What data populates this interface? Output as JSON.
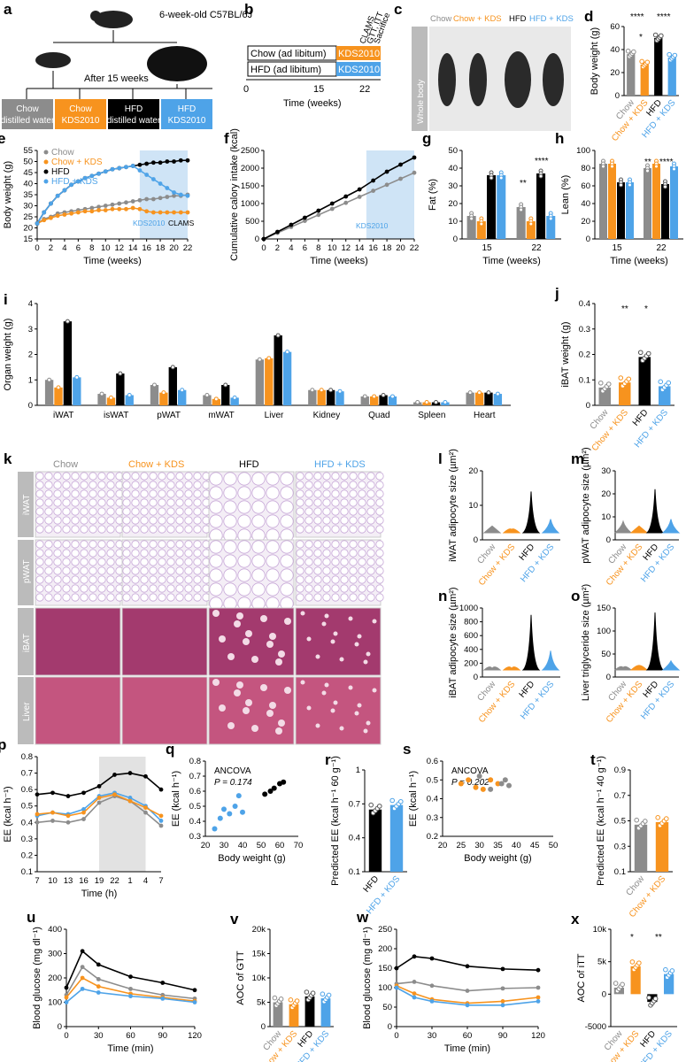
{
  "colors": {
    "chow": "#8c8c8c",
    "chowkds": "#f7931e",
    "hfd": "#000000",
    "hfdkds": "#4ea3e8",
    "shade": "#cfe4f6",
    "grey_shade": "#e2e2e2",
    "micro_pink": "#d8c8e4"
  },
  "groups": [
    "Chow",
    "Chow + KDS",
    "HFD",
    "HFD + KDS"
  ],
  "panels": {
    "a": {
      "label": "a",
      "mouse_label": "6-week-old C57BL/6J",
      "after": "After 15 weeks",
      "boxes": [
        "Chow distilled water",
        "Chow KDS2010",
        "HFD distilled water",
        "HFD KDS2010"
      ]
    },
    "b": {
      "label": "b",
      "chow_line": "Chow (ad libitum)",
      "hfd_line": "HFD (ad libitum)",
      "kds": "KDS2010",
      "events": [
        "CLAMS",
        "GTT, ITT",
        "Sacrifice"
      ],
      "ticks": [
        "0",
        "15",
        "22"
      ],
      "xlabel": "Time (weeks)"
    },
    "c": {
      "label": "c",
      "side": "Whole body",
      "groups": [
        "Chow",
        "Chow + KDS",
        "HFD",
        "HFD + KDS"
      ]
    },
    "d": {
      "label": "d",
      "ylabel": "Body weight (g)",
      "ticks": [
        "0",
        "20",
        "40",
        "60"
      ],
      "stars": [
        "*",
        "****",
        "****"
      ]
    },
    "e": {
      "label": "e",
      "ylabel": "Body weight (g)",
      "xlabel": "Time (weeks)",
      "kds": "KDS2010",
      "clams": "CLAMS"
    },
    "f": {
      "label": "f",
      "ylabel": "Cumulative calory intake (kcal)",
      "xlabel": "Time (weeks)",
      "kds": "KDS2010"
    },
    "g": {
      "label": "g",
      "ylabel": "Fat (%)",
      "xlabel": "Time (weeks)",
      "stars": [
        "**",
        "****"
      ]
    },
    "h": {
      "label": "h",
      "ylabel": "Lean (%)",
      "xlabel": "Time (weeks)",
      "stars": [
        "**",
        "****"
      ]
    },
    "i": {
      "label": "i",
      "ylabel": "Organ weight (g)",
      "organs": [
        "iWAT",
        "isWAT",
        "pWAT",
        "mWAT",
        "Liver",
        "Kidney",
        "Quad",
        "Spleen",
        "Heart"
      ]
    },
    "j": {
      "label": "j",
      "ylabel": "iBAT weight (g)",
      "stars": [
        "**",
        "*"
      ]
    },
    "k": {
      "label": "k",
      "rows": [
        "iWAT",
        "pWAT",
        "iBAT",
        "Liver"
      ]
    },
    "l": {
      "label": "l",
      "ylabel": "iWAT adipocyte size (µm²)"
    },
    "m": {
      "label": "m",
      "ylabel": "pWAT adipocyte size (µm²)"
    },
    "n": {
      "label": "n",
      "ylabel": "iBAT adipocyte size (µm²)"
    },
    "o": {
      "label": "o",
      "ylabel": "Liver triglyceride size (µm²)"
    },
    "p": {
      "label": "p",
      "ylabel": "EE (kcal h⁻¹)",
      "xlabel": "Time (h)"
    },
    "q": {
      "label": "q",
      "ancova": "ANCOVA",
      "pval": "P = 0.174",
      "ylabel": "EE (kcal h⁻¹)",
      "xlabel": "Body weight (g)"
    },
    "r": {
      "label": "r",
      "ylabel": "Predicted EE (kcal h⁻¹ 60 g⁻¹)"
    },
    "s": {
      "label": "s",
      "ancova": "ANCOVA",
      "pval": "P = 0.202",
      "ylabel": "EE (kcal h⁻¹)",
      "xlabel": "Body weight (g)"
    },
    "t": {
      "label": "t",
      "ylabel": "Predicted EE (kcal h⁻¹ 40 g⁻¹)"
    },
    "u": {
      "label": "u",
      "ylabel": "Blood glucose (mg dl⁻¹)",
      "xlabel": "Time (min)"
    },
    "v": {
      "label": "v",
      "ylabel": "AOC of GTT"
    },
    "w": {
      "label": "w",
      "ylabel": "Blood glucose (mg dl⁻¹)",
      "xlabel": "Time (min)"
    },
    "x": {
      "label": "x",
      "ylabel": "AOC of iTT",
      "stars": [
        "*",
        "**"
      ]
    }
  },
  "chart_data": [
    {
      "panel": "d",
      "type": "bar",
      "categories": [
        "Chow",
        "Chow + KDS",
        "HFD",
        "HFD + KDS"
      ],
      "values": [
        36,
        27,
        50,
        33
      ],
      "ylim": [
        0,
        60
      ],
      "ylabel": "Body weight (g)"
    },
    {
      "panel": "e",
      "type": "line",
      "x": [
        0,
        1,
        2,
        3,
        4,
        5,
        6,
        7,
        8,
        9,
        10,
        11,
        12,
        13,
        14,
        15,
        16,
        17,
        18,
        19,
        20,
        21,
        22
      ],
      "xlim": [
        0,
        22
      ],
      "ylim": [
        15,
        55
      ],
      "ylabel": "Body weight (g)",
      "xlabel": "Time (weeks)",
      "series": [
        {
          "name": "Chow",
          "values": [
            22,
            24,
            25,
            26.5,
            27,
            27.5,
            28,
            28.5,
            29,
            29.5,
            30,
            30.5,
            31,
            31.5,
            32,
            32.5,
            33,
            33,
            33.5,
            34,
            34.5,
            34.5,
            35
          ]
        },
        {
          "name": "Chow + KDS",
          "values": [
            22,
            23.5,
            24.5,
            25.5,
            26,
            26.5,
            27,
            27.5,
            27.5,
            28,
            28,
            28.5,
            28.5,
            28.5,
            29,
            28.5,
            27.5,
            27,
            27,
            27,
            27,
            27,
            27
          ]
        },
        {
          "name": "HFD",
          "values": [
            22,
            27,
            31,
            34.5,
            37,
            39.5,
            41,
            42.5,
            43.5,
            44.5,
            45.5,
            46.5,
            47,
            47.5,
            48,
            48.5,
            49,
            49.5,
            49.5,
            50,
            50,
            50.5,
            50.5
          ]
        },
        {
          "name": "HFD + KDS",
          "values": [
            22,
            27,
            31,
            34.5,
            37,
            39.5,
            41,
            42.5,
            43.5,
            44.5,
            45.5,
            46.5,
            47,
            47.5,
            48,
            46,
            44,
            42,
            40,
            38,
            36,
            35,
            34.5
          ]
        }
      ]
    },
    {
      "panel": "f",
      "type": "line",
      "x": [
        0,
        2,
        4,
        6,
        8,
        10,
        12,
        14,
        16,
        18,
        20,
        22
      ],
      "ylim": [
        0,
        2500
      ],
      "ylabel": "Cumulative calory intake (kcal)",
      "series": [
        {
          "name": "Chow",
          "values": [
            0,
            170,
            340,
            510,
            680,
            850,
            1020,
            1190,
            1360,
            1530,
            1700,
            1870
          ]
        },
        {
          "name": "HFD",
          "values": [
            0,
            200,
            400,
            600,
            800,
            1000,
            1200,
            1400,
            1650,
            1900,
            2100,
            2300
          ]
        }
      ]
    },
    {
      "panel": "g",
      "type": "bar",
      "categories": [
        "15",
        "22"
      ],
      "series": [
        {
          "name": "Chow",
          "values": [
            13,
            18
          ]
        },
        {
          "name": "Chow + KDS",
          "values": [
            10,
            10
          ]
        },
        {
          "name": "HFD",
          "values": [
            36,
            37
          ]
        },
        {
          "name": "HFD + KDS",
          "values": [
            36,
            13
          ]
        }
      ],
      "ylim": [
        0,
        50
      ]
    },
    {
      "panel": "h",
      "type": "bar",
      "categories": [
        "15",
        "22"
      ],
      "series": [
        {
          "name": "Chow",
          "values": [
            85,
            80
          ]
        },
        {
          "name": "Chow + KDS",
          "values": [
            85,
            85
          ]
        },
        {
          "name": "HFD",
          "values": [
            64,
            62
          ]
        },
        {
          "name": "HFD + KDS",
          "values": [
            64,
            82
          ]
        }
      ],
      "ylim": [
        0,
        100
      ]
    },
    {
      "panel": "i",
      "type": "bar",
      "categories": [
        "iWAT",
        "isWAT",
        "pWAT",
        "mWAT",
        "Liver",
        "Kidney",
        "Quad",
        "Spleen",
        "Heart"
      ],
      "series": [
        {
          "name": "Chow",
          "values": [
            1.0,
            0.45,
            0.8,
            0.4,
            1.8,
            0.6,
            0.35,
            0.12,
            0.5
          ]
        },
        {
          "name": "Chow + KDS",
          "values": [
            0.7,
            0.3,
            0.5,
            0.25,
            1.85,
            0.6,
            0.35,
            0.12,
            0.5
          ]
        },
        {
          "name": "HFD",
          "values": [
            3.3,
            1.25,
            1.5,
            0.8,
            2.75,
            0.6,
            0.4,
            0.12,
            0.5
          ]
        },
        {
          "name": "HFD + KDS",
          "values": [
            1.1,
            0.4,
            0.6,
            0.3,
            2.1,
            0.55,
            0.35,
            0.12,
            0.45
          ]
        }
      ],
      "ylim": [
        0,
        4
      ]
    },
    {
      "panel": "j",
      "type": "bar",
      "categories": [
        "Chow",
        "Chow + KDS",
        "HFD",
        "HFD + KDS"
      ],
      "values": [
        0.07,
        0.09,
        0.19,
        0.075
      ],
      "ylim": [
        0,
        0.4
      ]
    },
    {
      "panel": "p",
      "type": "line",
      "xlabel": "Time (h)",
      "ticks": [
        "7",
        "10",
        "13",
        "16",
        "19",
        "22",
        "1",
        "4",
        "7"
      ],
      "ylim": [
        0.1,
        0.8
      ],
      "series": [
        {
          "name": "HFD",
          "values": [
            0.57,
            0.58,
            0.56,
            0.58,
            0.62,
            0.69,
            0.7,
            0.68,
            0.6
          ]
        },
        {
          "name": "HFD + KDS",
          "values": [
            0.44,
            0.46,
            0.45,
            0.48,
            0.56,
            0.58,
            0.55,
            0.5,
            0.41
          ]
        },
        {
          "name": "Chow",
          "values": [
            0.4,
            0.41,
            0.4,
            0.42,
            0.52,
            0.56,
            0.53,
            0.46,
            0.38
          ]
        },
        {
          "name": "Chow + KDS",
          "values": [
            0.45,
            0.46,
            0.44,
            0.46,
            0.55,
            0.57,
            0.53,
            0.49,
            0.44
          ]
        }
      ]
    },
    {
      "panel": "r",
      "type": "bar",
      "categories": [
        "HFD",
        "HFD + KDS"
      ],
      "values": [
        0.65,
        0.69
      ],
      "ylim": [
        0.1,
        1.0
      ]
    },
    {
      "panel": "t",
      "type": "bar",
      "categories": [
        "Chow",
        "Chow + KDS"
      ],
      "values": [
        0.47,
        0.49
      ],
      "ylim": [
        0.1,
        0.9
      ]
    },
    {
      "panel": "u",
      "type": "line",
      "x": [
        0,
        15,
        30,
        60,
        90,
        120
      ],
      "ylim": [
        0,
        400
      ],
      "series": [
        {
          "name": "HFD",
          "values": [
            160,
            310,
            255,
            205,
            180,
            150
          ]
        },
        {
          "name": "Chow",
          "values": [
            130,
            245,
            195,
            155,
            130,
            115
          ]
        },
        {
          "name": "Chow + KDS",
          "values": [
            120,
            200,
            165,
            135,
            120,
            105
          ]
        },
        {
          "name": "HFD + KDS",
          "values": [
            100,
            155,
            140,
            125,
            115,
            100
          ]
        }
      ]
    },
    {
      "panel": "v",
      "type": "bar",
      "categories": [
        "Chow",
        "Chow + KDS",
        "HFD",
        "HFD + KDS"
      ],
      "values": [
        5000,
        4600,
        6200,
        5800
      ],
      "ylim": [
        0,
        20000
      ]
    },
    {
      "panel": "w",
      "type": "line",
      "x": [
        0,
        15,
        30,
        60,
        90,
        120
      ],
      "ylim": [
        0,
        250
      ],
      "series": [
        {
          "name": "HFD",
          "values": [
            150,
            180,
            175,
            155,
            148,
            145
          ]
        },
        {
          "name": "Chow",
          "values": [
            110,
            115,
            105,
            92,
            98,
            100
          ]
        },
        {
          "name": "Chow + KDS",
          "values": [
            105,
            85,
            70,
            60,
            65,
            75
          ]
        },
        {
          "name": "HFD + KDS",
          "values": [
            100,
            75,
            65,
            55,
            55,
            65
          ]
        }
      ]
    },
    {
      "panel": "x",
      "type": "bar",
      "categories": [
        "Chow",
        "Chow + KDS",
        "HFD",
        "HFD + KDS"
      ],
      "values": [
        1000,
        4300,
        -1200,
        3100
      ],
      "ylim": [
        -5000,
        10000
      ]
    }
  ]
}
